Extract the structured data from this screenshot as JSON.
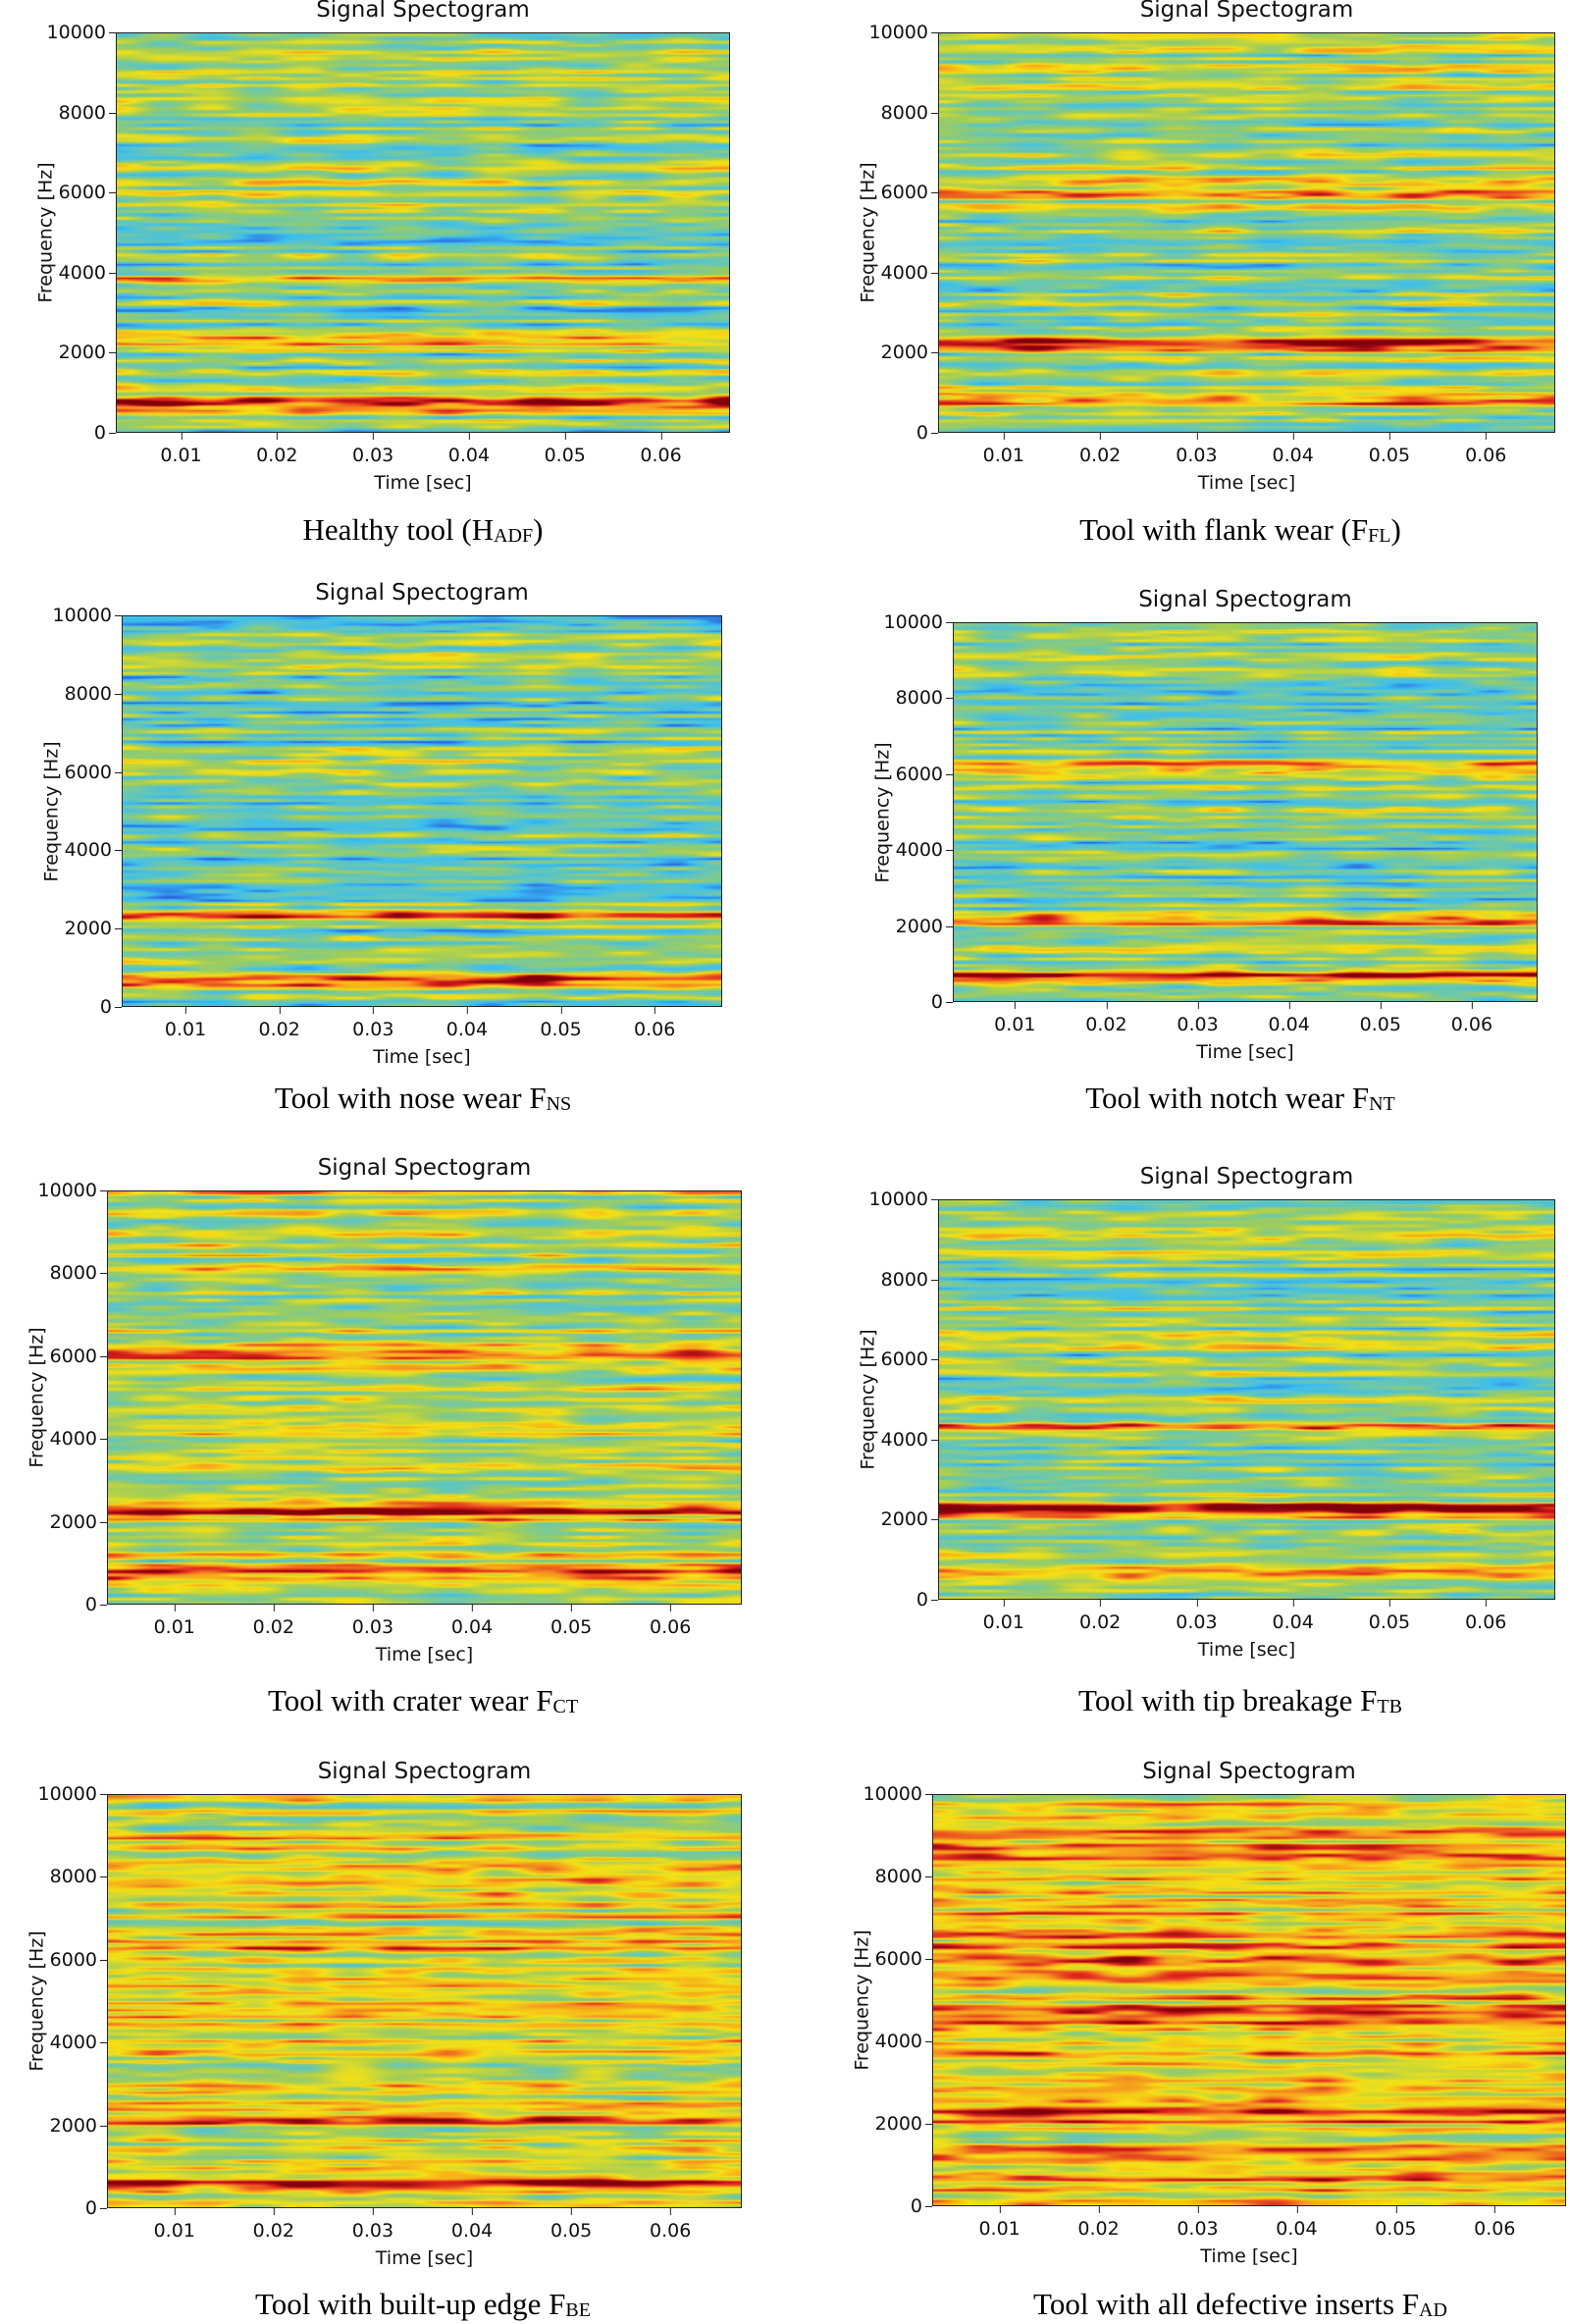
{
  "chart_data": [
    {
      "type": "heatmap",
      "title": "Signal Spectogram",
      "xlabel": "Time [sec]",
      "ylabel": "Frequency [Hz]",
      "xlim": [
        0.0032,
        0.0672
      ],
      "ylim": [
        0,
        10000
      ],
      "xticks": [
        "0.01",
        "0.02",
        "0.03",
        "0.04",
        "0.05",
        "0.06"
      ],
      "yticks": [
        "0",
        "2000",
        "4000",
        "6000",
        "8000",
        "10000"
      ],
      "caption": "Healthy tool (H",
      "caption_sub": "ADF",
      "caption_end": ")",
      "hot_bands_hz": [
        700,
        2300,
        3800
      ],
      "band_intensity": [
        0.95,
        0.78,
        0.68
      ],
      "background_level": 0.5
    },
    {
      "type": "heatmap",
      "title": "Signal Spectogram",
      "xlabel": "Time [sec]",
      "ylabel": "Frequency [Hz]",
      "xlim": [
        0.0032,
        0.0672
      ],
      "ylim": [
        0,
        10000
      ],
      "xticks": [
        "0.01",
        "0.02",
        "0.03",
        "0.04",
        "0.05",
        "0.06"
      ],
      "yticks": [
        "0",
        "2000",
        "4000",
        "6000",
        "8000",
        "10000"
      ],
      "caption": "Tool with flank wear (F",
      "caption_sub": "FL",
      "caption_end": ")",
      "hot_bands_hz": [
        2250,
        800,
        6000
      ],
      "band_intensity": [
        0.95,
        0.75,
        0.7
      ],
      "background_level": 0.52
    },
    {
      "type": "heatmap",
      "title": "Signal Spectogram",
      "xlabel": "Time [sec]",
      "ylabel": "Frequency [Hz]",
      "xlim": [
        0.0032,
        0.0672
      ],
      "ylim": [
        0,
        10000
      ],
      "xticks": [
        "0.01",
        "0.02",
        "0.03",
        "0.04",
        "0.05",
        "0.06"
      ],
      "yticks": [
        "0",
        "2000",
        "4000",
        "6000",
        "8000",
        "10000"
      ],
      "caption": "Tool with nose wear F",
      "caption_sub": "NS",
      "caption_end": "",
      "hot_bands_hz": [
        700,
        2300
      ],
      "band_intensity": [
        0.95,
        0.75
      ],
      "background_level": 0.47
    },
    {
      "type": "heatmap",
      "title": "Signal Spectogram",
      "xlabel": "Time [sec]",
      "ylabel": "Frequency [Hz]",
      "xlim": [
        0.0032,
        0.0672
      ],
      "ylim": [
        0,
        10000
      ],
      "xticks": [
        "0.01",
        "0.02",
        "0.03",
        "0.04",
        "0.05",
        "0.06"
      ],
      "yticks": [
        "0",
        "2000",
        "4000",
        "6000",
        "8000",
        "10000"
      ],
      "caption": "Tool with notch wear F",
      "caption_sub": "NT",
      "caption_end": "",
      "hot_bands_hz": [
        700,
        2200,
        6200
      ],
      "band_intensity": [
        0.93,
        0.85,
        0.68
      ],
      "background_level": 0.47
    },
    {
      "type": "heatmap",
      "title": "Signal Spectogram",
      "xlabel": "Time [sec]",
      "ylabel": "Frequency [Hz]",
      "xlim": [
        0.0032,
        0.0672
      ],
      "ylim": [
        0,
        10000
      ],
      "xticks": [
        "0.01",
        "0.02",
        "0.03",
        "0.04",
        "0.05",
        "0.06"
      ],
      "yticks": [
        "0",
        "2000",
        "4000",
        "6000",
        "8000",
        "10000"
      ],
      "caption": "Tool with crater wear F",
      "caption_sub": "CT",
      "caption_end": "",
      "hot_bands_hz": [
        2250,
        700,
        6000,
        4300
      ],
      "band_intensity": [
        0.95,
        0.85,
        0.75,
        0.72
      ],
      "background_level": 0.58
    },
    {
      "type": "heatmap",
      "title": "Signal Spectogram",
      "xlabel": "Time [sec]",
      "ylabel": "Frequency [Hz]",
      "xlim": [
        0.0032,
        0.0672
      ],
      "ylim": [
        0,
        10000
      ],
      "xticks": [
        "0.01",
        "0.02",
        "0.03",
        "0.04",
        "0.05",
        "0.06"
      ],
      "yticks": [
        "0",
        "2000",
        "4000",
        "6000",
        "8000",
        "10000"
      ],
      "caption": "Tool with tip breakage F",
      "caption_sub": "TB",
      "caption_end": "",
      "hot_bands_hz": [
        2250,
        4300,
        700
      ],
      "band_intensity": [
        0.93,
        0.75,
        0.7
      ],
      "background_level": 0.52
    },
    {
      "type": "heatmap",
      "title": "Signal Spectogram",
      "xlabel": "Time [sec]",
      "ylabel": "Frequency [Hz]",
      "xlim": [
        0.0032,
        0.0672
      ],
      "ylim": [
        0,
        10000
      ],
      "xticks": [
        "0.01",
        "0.02",
        "0.03",
        "0.04",
        "0.05",
        "0.06"
      ],
      "yticks": [
        "0",
        "2000",
        "4000",
        "6000",
        "8000",
        "10000"
      ],
      "caption": "Tool with built-up edge F",
      "caption_sub": "BE",
      "caption_end": "",
      "hot_bands_hz": [
        600,
        2200,
        6300,
        4200
      ],
      "band_intensity": [
        0.93,
        0.78,
        0.72,
        0.72
      ],
      "background_level": 0.62
    },
    {
      "type": "heatmap",
      "title": "Signal Spectogram",
      "xlabel": "Time [sec]",
      "ylabel": "Frequency [Hz]",
      "xlim": [
        0.0032,
        0.0672
      ],
      "ylim": [
        0,
        10000
      ],
      "xticks": [
        "0.01",
        "0.02",
        "0.03",
        "0.04",
        "0.05",
        "0.06"
      ],
      "yticks": [
        "0",
        "2000",
        "4000",
        "6000",
        "8000",
        "10000"
      ],
      "caption": "Tool with all defective inserts F",
      "caption_sub": "AD",
      "caption_end": "",
      "hot_bands_hz": [
        2300,
        6000,
        4500,
        800,
        9000
      ],
      "band_intensity": [
        0.95,
        0.82,
        0.8,
        0.8,
        0.75
      ],
      "background_level": 0.7
    }
  ]
}
